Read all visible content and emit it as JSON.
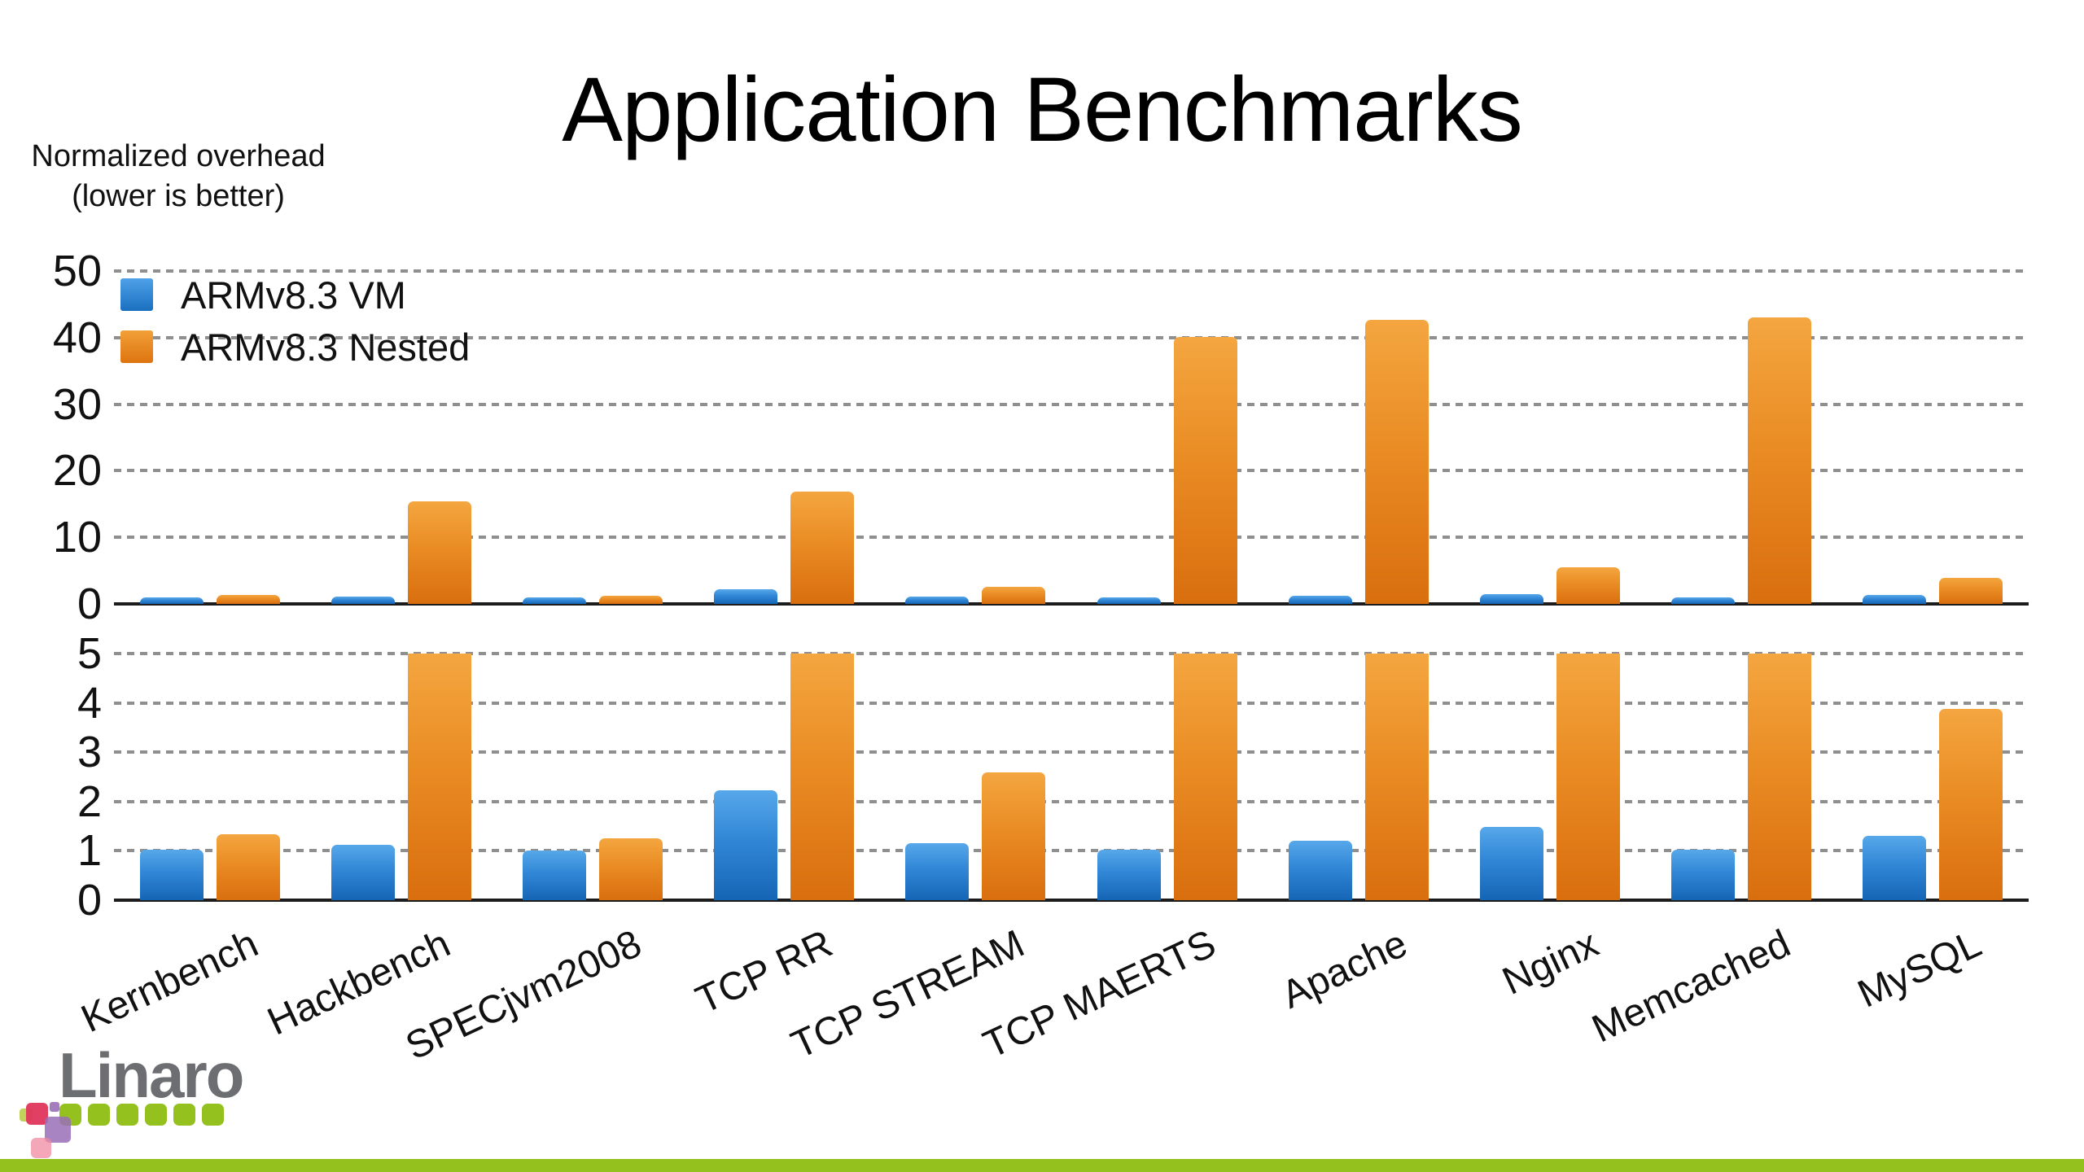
{
  "slide": {
    "title": "Application Benchmarks",
    "y_axis_note_line1": "Normalized overhead",
    "y_axis_note_line2": "(lower is better)",
    "logo_text": "Linaro"
  },
  "legend": {
    "position": "upper left",
    "items": [
      {
        "label": "ARMv8.3 VM",
        "color_key": "vm"
      },
      {
        "label": "ARMv8.3 Nested",
        "color_key": "nested"
      }
    ]
  },
  "colors": {
    "vm_top": "#57a8ea",
    "vm_bottom": "#1565b5",
    "nested_top": "#f4a640",
    "nested_bottom": "#d96e0e",
    "gridline": "#8f8f8f",
    "axis": "#1c1c1c",
    "logo_gray": "#6d6e71",
    "footer_green": "#95c11f",
    "logo_green": "#95c11f",
    "logo_crimson": "#e0355c",
    "logo_purple": "#9a6fb8",
    "logo_pink": "#ef8aa2",
    "logo_yellow_green": "#b5c93f"
  },
  "chart_data": {
    "type": "bar",
    "title": "Application Benchmarks",
    "ylabel": "Normalized overhead (lower is better)",
    "grid": "horizontal dashed",
    "legend_position": "upper left",
    "categories": [
      "Kernbench",
      "Hackbench",
      "SPECjvm2008",
      "TCP RR",
      "TCP STREAM",
      "TCP MAERTS",
      "Apache",
      "Nginx",
      "Memcached",
      "MySQL"
    ],
    "series": [
      {
        "name": "ARMv8.3 VM",
        "values": [
          1.03,
          1.13,
          1.0,
          2.23,
          1.15,
          1.02,
          1.21,
          1.49,
          1.02,
          1.31
        ]
      },
      {
        "name": "ARMv8.3 Nested",
        "values": [
          1.34,
          15.4,
          1.26,
          16.9,
          2.59,
          40.1,
          42.7,
          5.5,
          43.0,
          3.87
        ]
      }
    ],
    "panels": [
      {
        "ylim": [
          0,
          50
        ],
        "ticks": [
          50,
          40,
          30,
          20,
          10,
          0
        ],
        "clip_values_above_max": false
      },
      {
        "ylim": [
          0,
          5
        ],
        "ticks": [
          5,
          4,
          3,
          2,
          1,
          0
        ],
        "clip_values_above_max": true
      }
    ]
  },
  "logo_squares": {
    "green_row_count": 6
  }
}
